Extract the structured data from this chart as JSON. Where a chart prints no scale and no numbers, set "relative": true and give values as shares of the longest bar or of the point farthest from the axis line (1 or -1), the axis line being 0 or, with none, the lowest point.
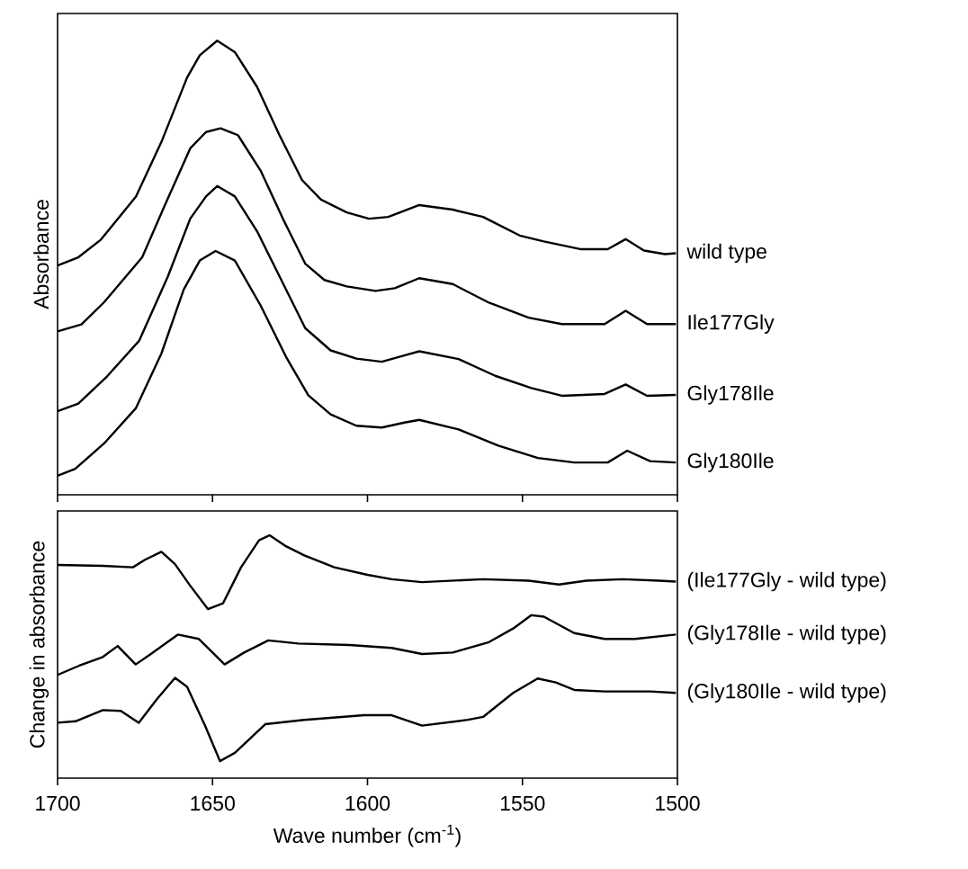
{
  "chart_data": [
    {
      "type": "line",
      "ylabel": "Absorbance",
      "relative": true,
      "xlim": [
        1700,
        1500
      ],
      "xticks": [
        {
          "value": 1700,
          "label": null
        },
        {
          "value": 1650,
          "label": null
        },
        {
          "value": 1600,
          "label": null
        },
        {
          "value": 1550,
          "label": null
        },
        {
          "value": 1500,
          "label": null
        }
      ],
      "tick_labels": false,
      "series": [
        {
          "name": "wild type",
          "color": "#000000",
          "x": [
            1700,
            1693.3,
            1686,
            1674.7,
            1666.5,
            1658.2,
            1654.1,
            1648.5,
            1642.8,
            1635.6,
            1628.4,
            1621.1,
            1615,
            1606.7,
            1599.5,
            1593.3,
            1583.3,
            1572.5,
            1562.7,
            1550.9,
            1543.1,
            1531.4,
            1522.5,
            1516.7,
            1510.8,
            1504,
            1500.5
          ],
          "values": [
            0.505,
            0.523,
            0.562,
            0.657,
            0.777,
            0.919,
            0.968,
            1.0,
            0.975,
            0.898,
            0.792,
            0.693,
            0.65,
            0.622,
            0.608,
            0.612,
            0.638,
            0.628,
            0.612,
            0.571,
            0.558,
            0.541,
            0.541,
            0.563,
            0.538,
            0.53,
            0.532
          ]
        },
        {
          "name": "Ile177Gly",
          "color": "#000000",
          "x": [
            1700,
            1692.3,
            1685,
            1672.7,
            1665.5,
            1657.2,
            1652.1,
            1647.4,
            1641.8,
            1634.5,
            1627.3,
            1620.1,
            1613.9,
            1606.7,
            1597.4,
            1591.2,
            1583.3,
            1572.5,
            1560.8,
            1548,
            1537.3,
            1523.5,
            1516.7,
            1509.8,
            1500.5
          ],
          "values": [
            0.36,
            0.375,
            0.424,
            0.523,
            0.636,
            0.763,
            0.799,
            0.807,
            0.792,
            0.714,
            0.608,
            0.509,
            0.473,
            0.459,
            0.449,
            0.455,
            0.477,
            0.464,
            0.423,
            0.39,
            0.376,
            0.376,
            0.405,
            0.376,
            0.376
          ]
        },
        {
          "name": "Gly178Ile",
          "color": "#000000",
          "x": [
            1700,
            1693.3,
            1684,
            1673.7,
            1664.4,
            1657.2,
            1652.1,
            1648.5,
            1642.8,
            1635.6,
            1627.3,
            1620.1,
            1611.9,
            1603.6,
            1595.4,
            1588.1,
            1583.3,
            1570.6,
            1558.8,
            1547.1,
            1537.3,
            1523.5,
            1516.7,
            1509.8,
            1500.5
          ],
          "values": [
            0.184,
            0.201,
            0.261,
            0.339,
            0.481,
            0.608,
            0.657,
            0.68,
            0.657,
            0.58,
            0.466,
            0.367,
            0.318,
            0.3,
            0.293,
            0.307,
            0.316,
            0.299,
            0.262,
            0.235,
            0.218,
            0.222,
            0.243,
            0.218,
            0.22
          ]
        },
        {
          "name": "Gly180Ile",
          "color": "#000000",
          "x": [
            1700,
            1694.3,
            1685,
            1674.7,
            1666.5,
            1659.3,
            1654.1,
            1649,
            1642.8,
            1634.5,
            1626.3,
            1619.1,
            1611.9,
            1603.6,
            1595.4,
            1588.1,
            1583.3,
            1570.6,
            1557.8,
            1545,
            1533.3,
            1522.5,
            1516.2,
            1508.8,
            1500.5
          ],
          "values": [
            0.042,
            0.057,
            0.113,
            0.191,
            0.311,
            0.452,
            0.516,
            0.537,
            0.516,
            0.417,
            0.304,
            0.219,
            0.177,
            0.152,
            0.148,
            0.159,
            0.165,
            0.144,
            0.108,
            0.081,
            0.071,
            0.071,
            0.097,
            0.074,
            0.071
          ]
        }
      ]
    },
    {
      "type": "line",
      "ylabel": "Change in absorbance",
      "xlabel": "Wave number (cm$^{-1}$)",
      "relative": true,
      "xlim": [
        1700,
        1500
      ],
      "xticks": [
        1700,
        1650,
        1600,
        1550,
        1500
      ],
      "tick_labels": "x",
      "series": [
        {
          "name": "(Ile177Gly - wild type)",
          "color": "#000000",
          "x": [
            1700,
            1685.4,
            1675.7,
            1671.8,
            1666.5,
            1662.1,
            1657.3,
            1651.5,
            1646.6,
            1640.8,
            1635,
            1631.6,
            1626.2,
            1620.4,
            1610.7,
            1600,
            1592.2,
            1582.4,
            1562.7,
            1548,
            1538.2,
            1529.4,
            1517.6,
            1505.9,
            1500.5
          ],
          "values": [
            0.878,
            0.874,
            0.868,
            0.899,
            0.932,
            0.881,
            0.794,
            0.696,
            0.72,
            0.868,
            0.979,
            1.0,
            0.954,
            0.917,
            0.868,
            0.837,
            0.819,
            0.807,
            0.819,
            0.813,
            0.797,
            0.813,
            0.819,
            0.813,
            0.809
          ]
        },
        {
          "name": "(Gly178Ile - wild type)",
          "color": "#000000",
          "x": [
            1700,
            1693.2,
            1685.4,
            1680.6,
            1674.8,
            1669.9,
            1661.2,
            1654.4,
            1646.1,
            1639.8,
            1632,
            1622.3,
            1605.8,
            1592.2,
            1582.4,
            1572.5,
            1560.8,
            1553,
            1547.1,
            1543.1,
            1533.3,
            1523.5,
            1513.7,
            1500.5
          ],
          "values": [
            0.425,
            0.462,
            0.499,
            0.544,
            0.468,
            0.511,
            0.591,
            0.573,
            0.468,
            0.517,
            0.567,
            0.554,
            0.548,
            0.536,
            0.511,
            0.517,
            0.56,
            0.616,
            0.671,
            0.665,
            0.597,
            0.573,
            0.573,
            0.591
          ]
        },
        {
          "name": "(Gly180Ile - wild type)",
          "color": "#000000",
          "x": [
            1700,
            1694.2,
            1685.4,
            1679.6,
            1673.8,
            1667.9,
            1662.1,
            1658.2,
            1652.4,
            1647.6,
            1642.7,
            1633,
            1620.4,
            1601,
            1592.2,
            1582.4,
            1567.6,
            1562.7,
            1553,
            1545.1,
            1539.2,
            1533.3,
            1523.5,
            1508.8,
            1500.5
          ],
          "values": [
            0.228,
            0.234,
            0.28,
            0.277,
            0.228,
            0.326,
            0.413,
            0.376,
            0.216,
            0.07,
            0.105,
            0.222,
            0.24,
            0.259,
            0.259,
            0.216,
            0.24,
            0.252,
            0.351,
            0.41,
            0.394,
            0.363,
            0.357,
            0.357,
            0.351
          ]
        }
      ]
    }
  ]
}
